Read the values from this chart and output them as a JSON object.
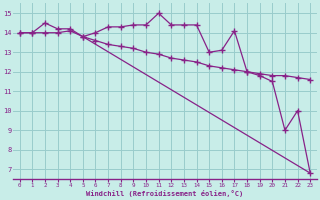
{
  "line1_x": [
    0,
    1,
    2,
    3,
    4,
    5,
    6,
    7,
    8,
    9,
    10,
    11,
    12,
    13,
    14,
    15,
    16,
    17,
    18,
    19,
    20,
    21,
    22,
    23
  ],
  "line1_y": [
    14.0,
    14.0,
    14.5,
    14.2,
    14.2,
    13.8,
    14.0,
    14.3,
    14.3,
    14.4,
    14.4,
    15.0,
    14.4,
    14.4,
    14.4,
    13.0,
    13.1,
    14.1,
    12.0,
    11.8,
    11.5,
    9.0,
    10.0,
    6.8
  ],
  "line2_x": [
    0,
    1,
    2,
    3,
    4,
    5,
    6,
    7,
    8,
    9,
    10,
    11,
    12,
    13,
    14,
    15,
    16,
    17,
    18,
    19,
    20,
    21,
    22,
    23
  ],
  "line2_y": [
    14.0,
    14.0,
    14.0,
    14.0,
    14.1,
    13.8,
    13.6,
    13.4,
    13.3,
    13.2,
    13.0,
    12.9,
    12.7,
    12.6,
    12.5,
    12.3,
    12.2,
    12.1,
    12.0,
    11.9,
    11.8,
    11.8,
    11.7,
    11.6
  ],
  "line3_x": [
    5,
    23
  ],
  "line3_y": [
    13.8,
    6.8
  ],
  "bg_color": "#c8ede8",
  "grid_color": "#99cccc",
  "line_color": "#882288",
  "xlabel": "Windchill (Refroidissement éolien,°C)",
  "ylim": [
    6.5,
    15.5
  ],
  "xlim": [
    -0.5,
    23.5
  ],
  "yticks": [
    7,
    8,
    9,
    10,
    11,
    12,
    13,
    14,
    15
  ],
  "xticks": [
    0,
    1,
    2,
    3,
    4,
    5,
    6,
    7,
    8,
    9,
    10,
    11,
    12,
    13,
    14,
    15,
    16,
    17,
    18,
    19,
    20,
    21,
    22,
    23
  ]
}
